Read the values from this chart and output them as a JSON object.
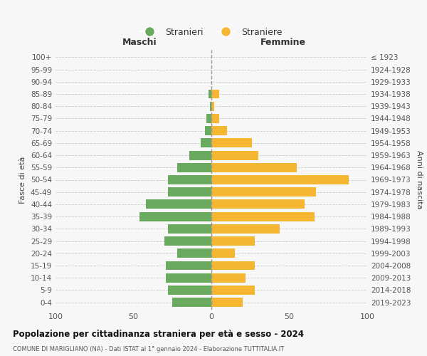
{
  "age_groups": [
    "100+",
    "95-99",
    "90-94",
    "85-89",
    "80-84",
    "75-79",
    "70-74",
    "65-69",
    "60-64",
    "55-59",
    "50-54",
    "45-49",
    "40-44",
    "35-39",
    "30-34",
    "25-29",
    "20-24",
    "15-19",
    "10-14",
    "5-9",
    "0-4"
  ],
  "birth_years": [
    "≤ 1923",
    "1924-1928",
    "1929-1933",
    "1934-1938",
    "1939-1943",
    "1944-1948",
    "1949-1953",
    "1954-1958",
    "1959-1963",
    "1964-1968",
    "1969-1973",
    "1974-1978",
    "1979-1983",
    "1984-1988",
    "1989-1993",
    "1994-1998",
    "1999-2003",
    "2004-2008",
    "2009-2013",
    "2014-2018",
    "2019-2023"
  ],
  "maschi": [
    0,
    0,
    0,
    2,
    1,
    3,
    4,
    7,
    14,
    22,
    28,
    28,
    42,
    46,
    28,
    30,
    22,
    29,
    29,
    28,
    25
  ],
  "femmine": [
    0,
    0,
    0,
    5,
    2,
    5,
    10,
    26,
    30,
    55,
    88,
    67,
    60,
    66,
    44,
    28,
    15,
    28,
    22,
    28,
    20
  ],
  "color_maschi": "#6aaa5f",
  "color_femmine": "#f5b731",
  "background_color": "#f7f7f7",
  "grid_color": "#cccccc",
  "title": "Popolazione per cittadinanza straniera per età e sesso - 2024",
  "subtitle": "COMUNE DI MARIGLIANO (NA) - Dati ISTAT al 1° gennaio 2024 - Elaborazione TUTTITALIA.IT",
  "xlabel_left": "Maschi",
  "xlabel_right": "Femmine",
  "ylabel_left": "Fasce di età",
  "ylabel_right": "Anni di nascita",
  "legend_maschi": "Stranieri",
  "legend_femmine": "Straniere",
  "xlim": 100,
  "xticks": [
    -100,
    -50,
    0,
    50,
    100
  ],
  "xticklabels": [
    "100",
    "50",
    "0",
    "50",
    "100"
  ]
}
